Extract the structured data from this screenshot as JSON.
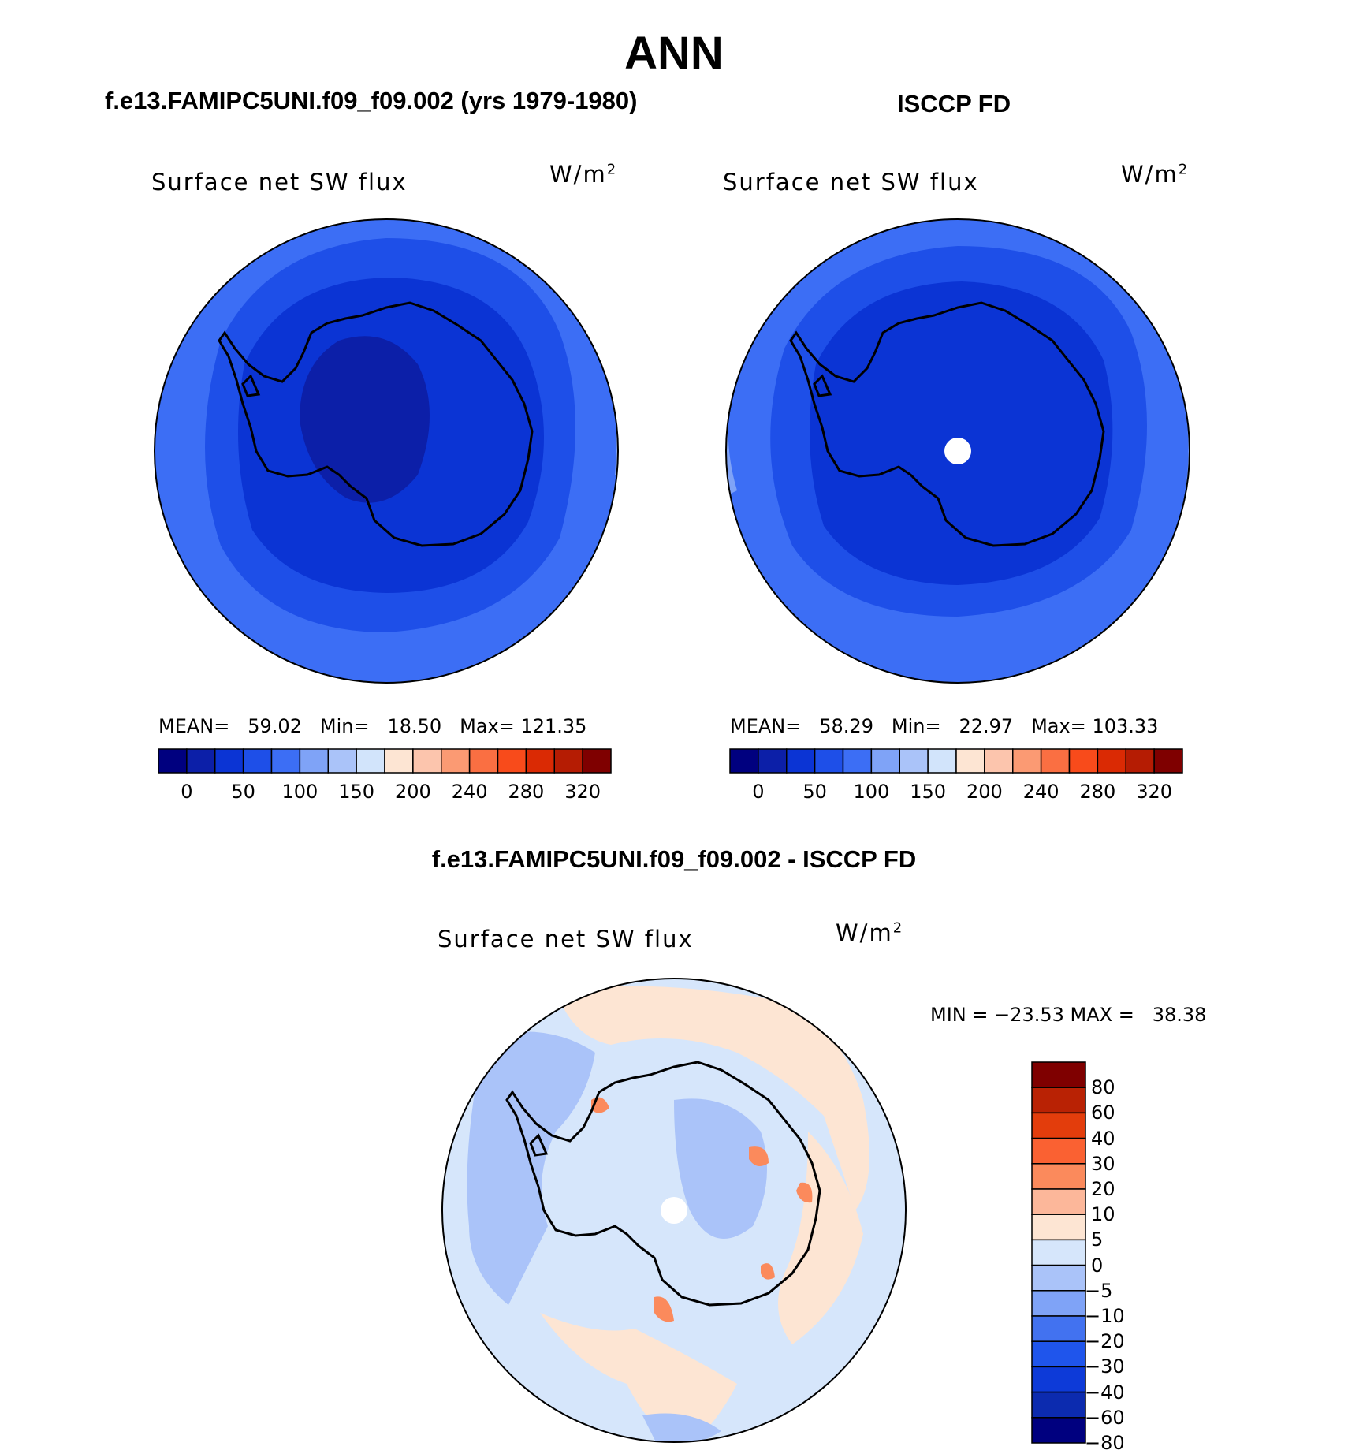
{
  "title": "ANN",
  "colors": {
    "abs_scale": [
      "#00007f",
      "#0c1fa8",
      "#0b34d4",
      "#1e4fe8",
      "#3c6ef5",
      "#7fa3f7",
      "#aac3f9",
      "#d2e4fb",
      "#fde5d3",
      "#fcc5ad",
      "#fb9a73",
      "#fa6f42",
      "#f84b1b",
      "#da2a04",
      "#b51c03",
      "#7f0000"
    ],
    "diff_scale": [
      "#00007f",
      "#0c2baf",
      "#0d3ad8",
      "#1f55ec",
      "#4272f0",
      "#7fa3f7",
      "#aac3f9",
      "#d6e6fb",
      "#fde5d3",
      "#fcb79a",
      "#fb8a5c",
      "#fa6132",
      "#e33d0c",
      "#b92204",
      "#7f0000"
    ],
    "map_outline": "#000000",
    "continent_outline": "#000000"
  },
  "panels": {
    "model": {
      "case_title": "f.e13.FAMIPC5UNI.f09_f09.002 (yrs 1979-1980)",
      "variable": "Surface net SW flux",
      "units_base": "W/m",
      "units_exp": "2",
      "stats": {
        "mean_label": "MEAN=",
        "mean": "59.02",
        "min_label": "Min=",
        "min": "18.50",
        "max_label": "Max=",
        "max": "121.35"
      },
      "colorbar_ticks": [
        "0",
        "50",
        "100",
        "150",
        "200",
        "240",
        "280",
        "320"
      ]
    },
    "obs": {
      "case_title": "ISCCP FD",
      "variable": "Surface net SW flux",
      "units_base": "W/m",
      "units_exp": "2",
      "stats": {
        "mean_label": "MEAN=",
        "mean": "58.29",
        "min_label": "Min=",
        "min": "22.97",
        "max_label": "Max=",
        "max": "103.33"
      },
      "colorbar_ticks": [
        "0",
        "50",
        "100",
        "150",
        "200",
        "240",
        "280",
        "320"
      ]
    },
    "diff": {
      "case_title": "f.e13.FAMIPC5UNI.f09_f09.002 - ISCCP FD",
      "variable": "Surface net SW flux",
      "units_base": "W/m",
      "units_exp": "2",
      "minmax": "MIN = −23.53 MAX =   38.38",
      "colorbar_ticks": [
        "80",
        "60",
        "40",
        "30",
        "20",
        "10",
        "5",
        "0",
        "−5",
        "−10",
        "−20",
        "−30",
        "−40",
        "−60",
        "−80"
      ]
    }
  }
}
